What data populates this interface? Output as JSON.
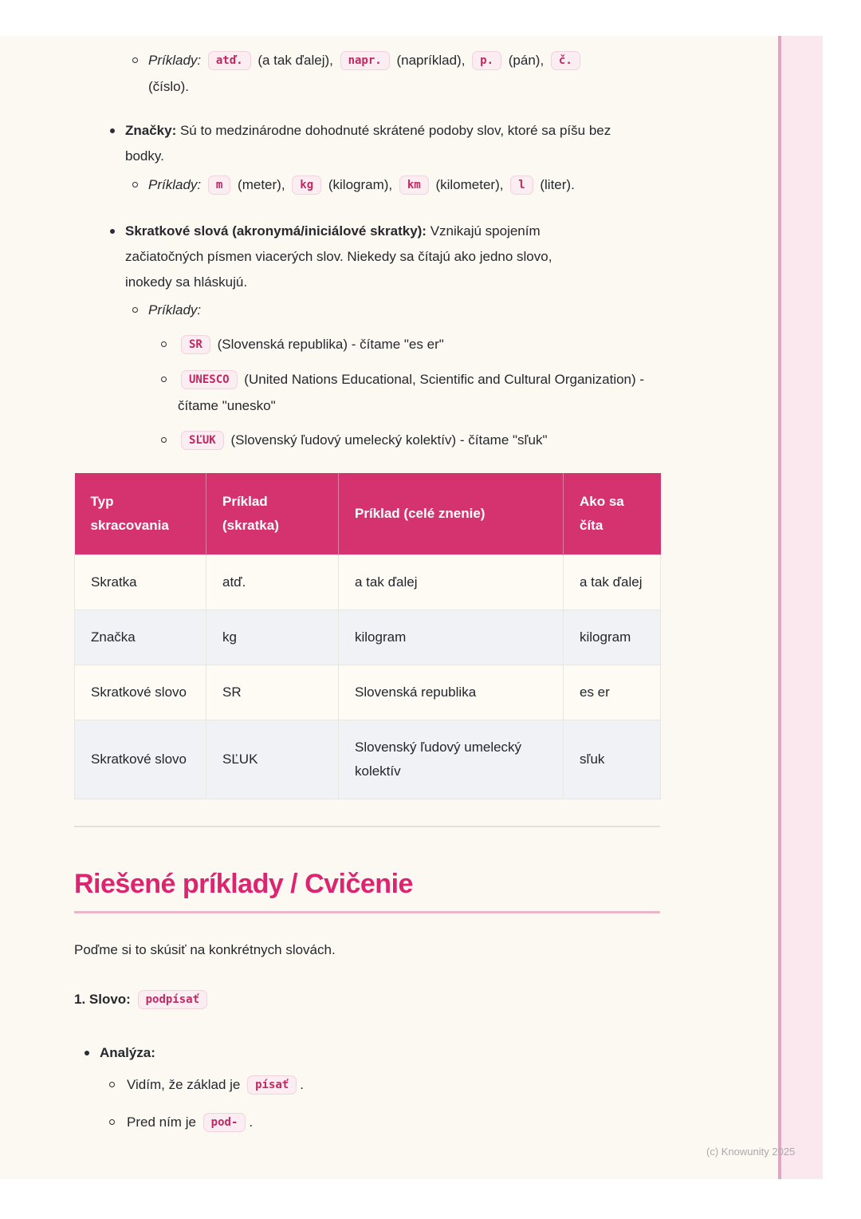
{
  "colors": {
    "accent_pink": "#d5336f",
    "heading_pink": "#dd2470",
    "badge_text": "#c12862",
    "badge_bg": "#fbedf2",
    "card_bg": "#fcf9f2",
    "strip_bg": "#fbe7ee",
    "strip_border": "#e2a5bf"
  },
  "top_examples": {
    "label": "Príklady:",
    "seg": [
      {
        "code": "atď.",
        "text": " (a tak ďalej), "
      },
      {
        "code": "napr.",
        "text": " (napríklad), "
      },
      {
        "code": "p.",
        "text": " (pán), "
      },
      {
        "code": "č.",
        "text": ""
      }
    ],
    "wrap": "(číslo)."
  },
  "znacky": {
    "bold": "Značky:",
    "text": " Sú to medzinárodne dohodnuté skrátené podoby slov, ktoré sa píšu bez bodky.",
    "examples_label": "Príklady:",
    "seg": [
      {
        "code": "m",
        "text": " (meter), "
      },
      {
        "code": "kg",
        "text": " (kilogram), "
      },
      {
        "code": "km",
        "text": " (kilometer), "
      },
      {
        "code": "l",
        "text": " (liter)."
      }
    ]
  },
  "skratkove": {
    "bold": "Skratkové slová (akronymá/iniciálové skratky):",
    "text": " Vznikajú spojením začiatočných písmen viacerých slov. Niekedy sa čítajú ako jedno slovo, inokedy sa hláskujú.",
    "examples_label": "Príklady:",
    "items": [
      {
        "code": "SR",
        "text": " (Slovenská republika) - čítame \"es er\""
      },
      {
        "code": "UNESCO",
        "text": " (United Nations Educational, Scientific and Cultural Organization) - čítame \"unesko\""
      },
      {
        "code": "SĽUK",
        "text": " (Slovenský ľudový umelecký kolektív) - čítame \"sľuk\""
      }
    ]
  },
  "table": {
    "headers": [
      "Typ skracovania",
      "Príklad (skratka)",
      "Príklad (celé znenie)",
      "Ako sa číta"
    ],
    "rows": [
      [
        "Skratka",
        "atď.",
        "a tak ďalej",
        "a tak ďalej"
      ],
      [
        "Značka",
        "kg",
        "kilogram",
        "kilogram"
      ],
      [
        "Skratkové slovo",
        "SR",
        "Slovenská republika",
        "es er"
      ],
      [
        "Skratkové slovo",
        "SĽUK",
        "Slovenský ľudový umelecký kolektív",
        "sľuk"
      ]
    ]
  },
  "section": {
    "heading": "Riešené príklady / Cvičenie",
    "intro": "Poďme si to skúsiť na konkrétnych slovách.",
    "slovo_label": "1. Slovo:",
    "slovo_code": "podpísať",
    "analyza_label": "Analýza:",
    "analyza_items": [
      {
        "text": "Vidím, že základ je ",
        "code": "písať",
        "after": "."
      },
      {
        "text": "Pred ním je ",
        "code": "pod-",
        "after": "."
      }
    ]
  },
  "watermark": "(c) Knowunity 2025"
}
